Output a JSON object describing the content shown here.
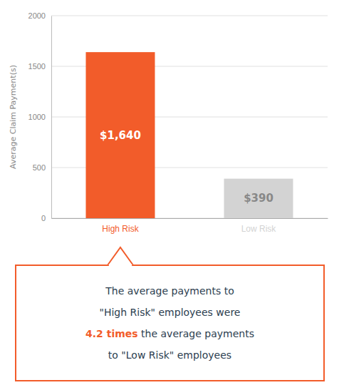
{
  "chart_data": {
    "type": "bar",
    "categories": [
      "High Risk",
      "Low Risk"
    ],
    "values": [
      1640,
      390
    ],
    "value_labels": [
      "$1,640",
      "$390"
    ],
    "colors": [
      "#F25C2A",
      "#D3D3D3"
    ],
    "data_labels": true,
    "ylabel": "Average Claim Payment(s)",
    "ylim": [
      0,
      2000
    ],
    "yticks": [
      0,
      500,
      1000,
      1500,
      2000
    ],
    "grid": true,
    "annotation": [
      "The average payments to",
      "\"High Risk\" employees were",
      [
        {
          "text": "4.2 times",
          "color": "#F25C2A"
        },
        {
          "text": " the average payments"
        }
      ],
      "to \"Low Risk\" employees"
    ]
  }
}
